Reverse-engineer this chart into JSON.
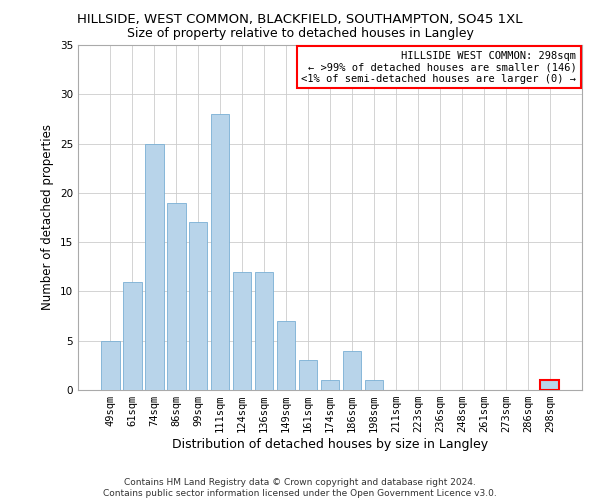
{
  "title": "HILLSIDE, WEST COMMON, BLACKFIELD, SOUTHAMPTON, SO45 1XL",
  "subtitle": "Size of property relative to detached houses in Langley",
  "xlabel": "Distribution of detached houses by size in Langley",
  "ylabel": "Number of detached properties",
  "categories": [
    "49sqm",
    "61sqm",
    "74sqm",
    "86sqm",
    "99sqm",
    "111sqm",
    "124sqm",
    "136sqm",
    "149sqm",
    "161sqm",
    "174sqm",
    "186sqm",
    "198sqm",
    "211sqm",
    "223sqm",
    "236sqm",
    "248sqm",
    "261sqm",
    "273sqm",
    "286sqm",
    "298sqm"
  ],
  "values": [
    5,
    11,
    25,
    19,
    17,
    28,
    12,
    12,
    7,
    3,
    1,
    4,
    1,
    0,
    0,
    0,
    0,
    0,
    0,
    0,
    1
  ],
  "bar_color": "#b8d4ea",
  "bar_edge_color": "#7aafd4",
  "highlight_bar_index": 20,
  "highlight_bar_edge_color": "red",
  "annotation_box_text": "HILLSIDE WEST COMMON: 298sqm\n← >99% of detached houses are smaller (146)\n<1% of semi-detached houses are larger (0) →",
  "annotation_box_color": "white",
  "annotation_box_edge_color": "red",
  "ylim": [
    0,
    35
  ],
  "yticks": [
    0,
    5,
    10,
    15,
    20,
    25,
    30,
    35
  ],
  "footer_text": "Contains HM Land Registry data © Crown copyright and database right 2024.\nContains public sector information licensed under the Open Government Licence v3.0.",
  "title_fontsize": 9.5,
  "subtitle_fontsize": 9,
  "xlabel_fontsize": 9,
  "ylabel_fontsize": 8.5,
  "tick_fontsize": 7.5,
  "annotation_fontsize": 7.5,
  "footer_fontsize": 6.5,
  "grid_color": "#cccccc",
  "background_color": "#ffffff"
}
